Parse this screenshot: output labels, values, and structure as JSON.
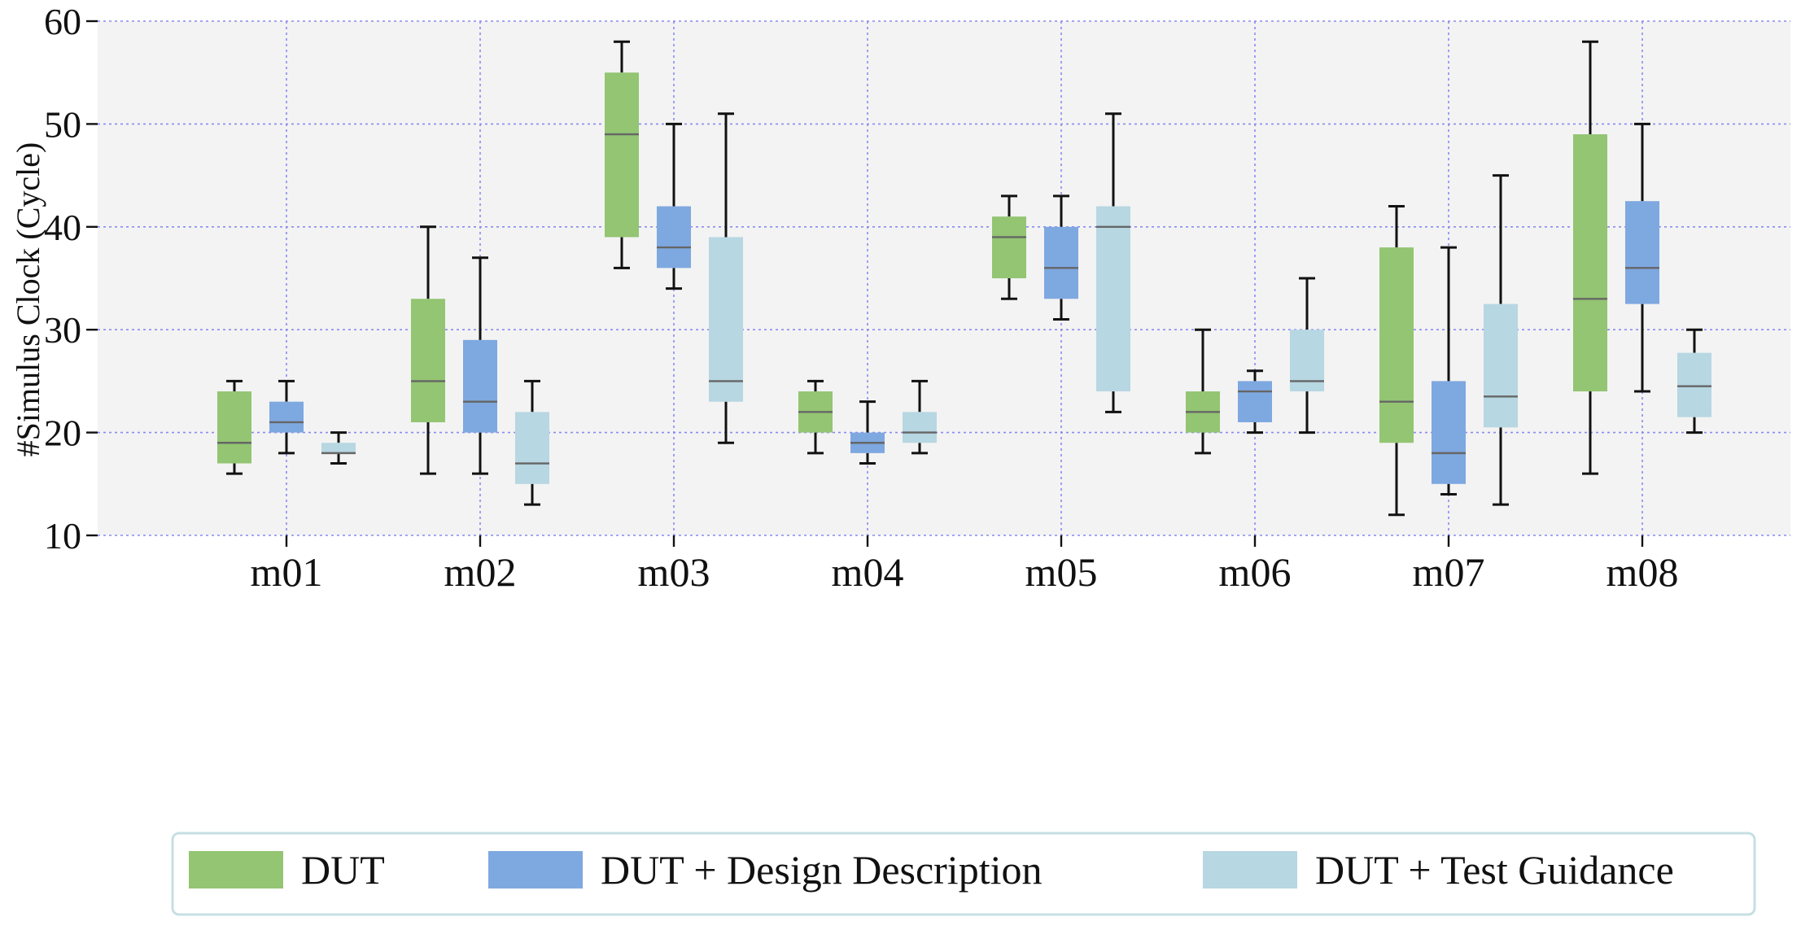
{
  "chart_data": {
    "type": "box",
    "title": "",
    "xlabel": "",
    "ylabel": "#Simulus Clock (Cycle)",
    "ylim": [
      10,
      60
    ],
    "yticks": [
      10,
      20,
      30,
      40,
      50,
      60
    ],
    "grid": true,
    "legend_position": "bottom-center",
    "categories": [
      "m01",
      "m02",
      "m03",
      "m04",
      "m05",
      "m06",
      "m07",
      "m08"
    ],
    "series": [
      {
        "name": "DUT",
        "color": "#93c572",
        "boxes": [
          {
            "min": 16,
            "q1": 17,
            "median": 19,
            "q3": 24,
            "max": 25
          },
          {
            "min": 16,
            "q1": 21,
            "median": 25,
            "q3": 33,
            "max": 40
          },
          {
            "min": 36,
            "q1": 39,
            "median": 49,
            "q3": 55,
            "max": 58
          },
          {
            "min": 18,
            "q1": 20,
            "median": 22,
            "q3": 24,
            "max": 25
          },
          {
            "min": 33,
            "q1": 35,
            "median": 39,
            "q3": 41,
            "max": 43
          },
          {
            "min": 18,
            "q1": 20,
            "median": 22,
            "q3": 24,
            "max": 30
          },
          {
            "min": 12,
            "q1": 19,
            "median": 23,
            "q3": 38,
            "max": 42
          },
          {
            "min": 16,
            "q1": 24,
            "median": 33,
            "q3": 49,
            "max": 58
          }
        ]
      },
      {
        "name": "DUT + Design Description",
        "color": "#7ea8e0",
        "boxes": [
          {
            "min": 18,
            "q1": 20,
            "median": 21,
            "q3": 23,
            "max": 25
          },
          {
            "min": 16,
            "q1": 20,
            "median": 23,
            "q3": 29,
            "max": 37
          },
          {
            "min": 34,
            "q1": 36,
            "median": 38,
            "q3": 42,
            "max": 50
          },
          {
            "min": 17,
            "q1": 18,
            "median": 19,
            "q3": 20,
            "max": 23
          },
          {
            "min": 31,
            "q1": 33,
            "median": 36,
            "q3": 40,
            "max": 43
          },
          {
            "min": 20,
            "q1": 21,
            "median": 24,
            "q3": 25,
            "max": 26
          },
          {
            "min": 14,
            "q1": 15,
            "median": 18,
            "q3": 25,
            "max": 38
          },
          {
            "min": 24,
            "q1": 32.5,
            "median": 36,
            "q3": 42.5,
            "max": 50
          }
        ]
      },
      {
        "name": "DUT + Test Guidance",
        "color": "#b7d7e2",
        "boxes": [
          {
            "min": 17,
            "q1": 18,
            "median": 18,
            "q3": 19,
            "max": 20
          },
          {
            "min": 13,
            "q1": 15,
            "median": 17,
            "q3": 22,
            "max": 25
          },
          {
            "min": 19,
            "q1": 23,
            "median": 25,
            "q3": 39,
            "max": 51
          },
          {
            "min": 18,
            "q1": 19,
            "median": 20,
            "q3": 22,
            "max": 25
          },
          {
            "min": 22,
            "q1": 24,
            "median": 40,
            "q3": 42,
            "max": 51
          },
          {
            "min": 20,
            "q1": 24,
            "median": 25,
            "q3": 30,
            "max": 35
          },
          {
            "min": 13,
            "q1": 20.5,
            "median": 23.5,
            "q3": 32.5,
            "max": 45
          },
          {
            "min": 20,
            "q1": 21.5,
            "median": 24.5,
            "q3": 27.75,
            "max": 30
          }
        ]
      }
    ],
    "colors": {
      "plot_background": "#f3f3f3",
      "grid": "#8a8af0",
      "median": "#666666",
      "whisker": "#111111",
      "legend_border": "#c7dfe3"
    }
  }
}
